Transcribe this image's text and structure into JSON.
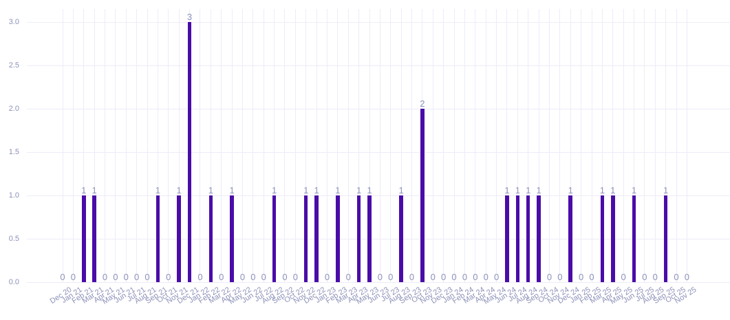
{
  "chart_data": {
    "type": "bar",
    "title": "",
    "xlabel": "",
    "ylabel": "",
    "ylim": [
      0,
      3
    ],
    "grid": true,
    "legend": false,
    "value_labels_shown": true,
    "y_ticks": [
      "0.0",
      "0.5",
      "1.0",
      "1.5",
      "2.0",
      "2.5",
      "3.0"
    ],
    "categories": [
      "Dec 20",
      "Jan 21",
      "Feb 21",
      "Mar 21",
      "Apr 21",
      "May 21",
      "Jun 21",
      "Jul 21",
      "Aug 21",
      "Sep 21",
      "Oct 21",
      "Nov 21",
      "Dec 21",
      "Jan 22",
      "Feb 22",
      "Mar 22",
      "Apr 22",
      "May 22",
      "Jun 22",
      "Jul 22",
      "Aug 22",
      "Sep 22",
      "Oct 22",
      "Nov 22",
      "Dec 22",
      "Jan 23",
      "Feb 23",
      "Mar 23",
      "Apr 23",
      "May 23",
      "Jun 23",
      "Jul 23",
      "Aug 23",
      "Sep 23",
      "Oct 23",
      "Nov 23",
      "Dec 23",
      "Jan 24",
      "Feb 24",
      "Mar 24",
      "Apr 24",
      "May 24",
      "Jun 24",
      "Jul 24",
      "Aug 24",
      "Sep 24",
      "Oct 24",
      "Nov 24",
      "Dec 24",
      "Jan 25",
      "Feb 25",
      "Mar 25",
      "Apr 25",
      "May 25",
      "Jun 25",
      "Jul 25",
      "Aug 25",
      "Sep 25",
      "Oct 25",
      "Nov 25"
    ],
    "values": [
      0,
      0,
      1,
      1,
      0,
      0,
      0,
      0,
      0,
      1,
      0,
      1,
      3,
      0,
      1,
      0,
      1,
      0,
      0,
      0,
      1,
      0,
      0,
      1,
      1,
      0,
      1,
      0,
      1,
      1,
      0,
      0,
      1,
      0,
      2,
      0,
      0,
      0,
      0,
      0,
      0,
      0,
      1,
      1,
      1,
      1,
      0,
      0,
      1,
      0,
      0,
      1,
      1,
      0,
      1,
      0,
      0,
      1,
      0,
      0
    ],
    "colors": {
      "bar": "#4A0CA8",
      "axis_label": "#8C91B8",
      "value_label": "#8C91B8",
      "gridline": "#EDECF8",
      "background": "#FFFFFF"
    }
  }
}
